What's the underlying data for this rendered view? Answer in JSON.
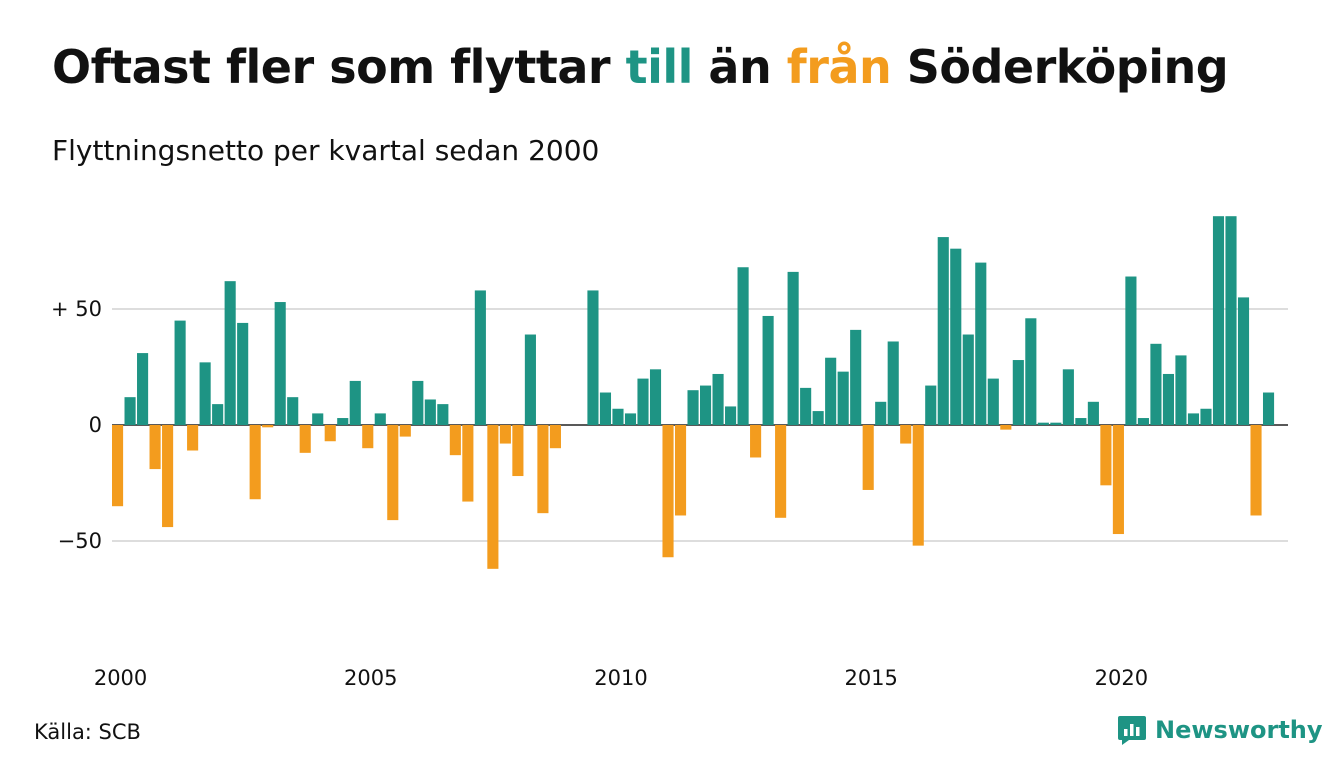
{
  "title": {
    "part1": "Oftast fler som flyttar ",
    "in_word": "till",
    "part2": " än ",
    "out_word": "från",
    "part3": " Söderköping"
  },
  "subtitle": "Flyttningsnetto per kvartal sedan 2000",
  "source": "Källa: SCB",
  "brand": "Newsworthy",
  "colors": {
    "positive": "#1e9484",
    "negative": "#f39c1e",
    "grid": "#dddddd"
  },
  "chart_data": {
    "type": "bar",
    "title": "Oftast fler som flyttar till än från Söderköping",
    "subtitle": "Flyttningsnetto per kvartal sedan 2000",
    "x_start": "2000 Q1",
    "x_ticks": [
      "2000",
      "2005",
      "2010",
      "2015",
      "2020"
    ],
    "y_ticks": [
      {
        "value": 50,
        "label": "+ 50"
      },
      {
        "value": 0,
        "label": "0"
      },
      {
        "value": -50,
        "label": "−50"
      }
    ],
    "ylim": [
      -88,
      92
    ],
    "grid": true,
    "values": [
      -35,
      12,
      31,
      -19,
      -44,
      45,
      -11,
      27,
      9,
      62,
      44,
      -32,
      -1,
      53,
      12,
      -12,
      5,
      -7,
      3,
      19,
      -10,
      5,
      -41,
      -5,
      19,
      11,
      9,
      -13,
      -33,
      58,
      -62,
      -8,
      -22,
      39,
      -38,
      -10,
      0,
      0,
      58,
      14,
      7,
      5,
      20,
      24,
      -57,
      -39,
      15,
      17,
      22,
      8,
      68,
      -14,
      47,
      -40,
      66,
      16,
      6,
      29,
      23,
      41,
      -28,
      10,
      36,
      -8,
      -52,
      17,
      81,
      76,
      39,
      70,
      20,
      -2,
      28,
      46,
      1,
      1,
      24,
      3,
      10,
      -26,
      -47,
      64,
      3,
      35,
      22,
      30,
      5,
      7,
      90,
      90,
      55,
      -39,
      14
    ]
  }
}
